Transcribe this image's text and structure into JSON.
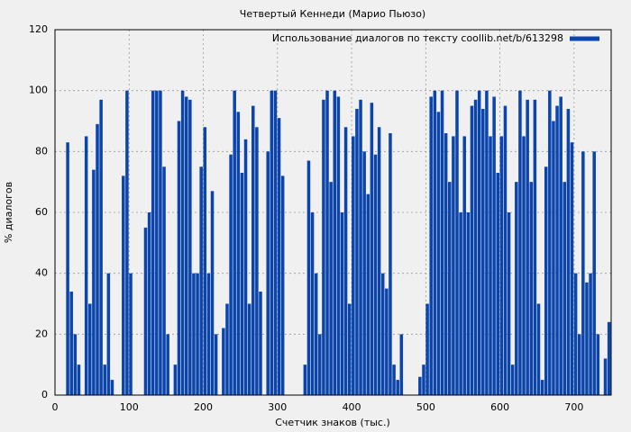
{
  "chart_data": {
    "type": "bar",
    "title": "Четвертый Кеннеди (Марио Пьюзо)",
    "xlabel": "Счетчик знаков (тыс.)",
    "ylabel": "% диалогов",
    "legend": "top-right",
    "grid": true,
    "xlim": [
      0,
      750
    ],
    "ylim": [
      0,
      120
    ],
    "xticks": [
      0,
      100,
      200,
      300,
      400,
      500,
      600,
      700
    ],
    "yticks": [
      0,
      20,
      40,
      60,
      80,
      100,
      120
    ],
    "series": [
      {
        "name": "Использование диалогов по тексту coollib.net/b/613298",
        "color": "#0b45ab",
        "x": [
          0,
          5,
          10,
          15,
          20,
          25,
          30,
          35,
          40,
          45,
          50,
          55,
          60,
          65,
          70,
          75,
          80,
          85,
          90,
          95,
          100,
          105,
          110,
          115,
          120,
          125,
          130,
          135,
          140,
          145,
          150,
          155,
          160,
          165,
          170,
          175,
          180,
          185,
          190,
          195,
          200,
          205,
          210,
          215,
          220,
          225,
          230,
          235,
          240,
          245,
          250,
          255,
          260,
          265,
          270,
          275,
          280,
          285,
          290,
          295,
          300,
          305,
          310,
          315,
          320,
          325,
          330,
          335,
          340,
          345,
          350,
          355,
          360,
          365,
          370,
          375,
          380,
          385,
          390,
          395,
          400,
          405,
          410,
          415,
          420,
          425,
          430,
          435,
          440,
          445,
          450,
          455,
          460,
          465,
          470,
          475,
          480,
          485,
          490,
          495,
          500,
          505,
          510,
          515,
          520,
          525,
          530,
          535,
          540,
          545,
          550,
          555,
          560,
          565,
          570,
          575,
          580,
          585,
          590,
          595,
          600,
          605,
          610,
          615,
          620,
          625,
          630,
          635,
          640,
          645,
          650,
          655,
          660,
          665,
          670,
          675,
          680,
          685,
          690,
          695,
          700,
          705,
          710,
          715,
          720,
          725,
          730,
          735,
          740,
          745
        ],
        "values": [
          0,
          0,
          0,
          83,
          34,
          20,
          10,
          0,
          85,
          30,
          74,
          89,
          97,
          10,
          40,
          5,
          0,
          0,
          72,
          100,
          40,
          0,
          0,
          0,
          55,
          60,
          100,
          100,
          100,
          75,
          20,
          0,
          10,
          90,
          100,
          98,
          97,
          40,
          40,
          75,
          88,
          40,
          67,
          20,
          0,
          22,
          30,
          79,
          100,
          93,
          73,
          84,
          30,
          95,
          88,
          34,
          0,
          80,
          100,
          100,
          91,
          72,
          0,
          0,
          0,
          0,
          0,
          10,
          77,
          60,
          40,
          20,
          97,
          100,
          70,
          100,
          98,
          60,
          88,
          30,
          85,
          94,
          97,
          80,
          66,
          96,
          79,
          88,
          40,
          35,
          86,
          10,
          5,
          20,
          0,
          0,
          0,
          0,
          6,
          10,
          30,
          98,
          100,
          93,
          100,
          86,
          70,
          85,
          100,
          60,
          85,
          60,
          95,
          97,
          100,
          94,
          100,
          85,
          98,
          73,
          85,
          95,
          60,
          10,
          70,
          100,
          85,
          97,
          70,
          97,
          30,
          5,
          75,
          100,
          90,
          95,
          98,
          70,
          94,
          83,
          40,
          20,
          80,
          37,
          40,
          80,
          20,
          0,
          12,
          24
        ]
      }
    ]
  }
}
